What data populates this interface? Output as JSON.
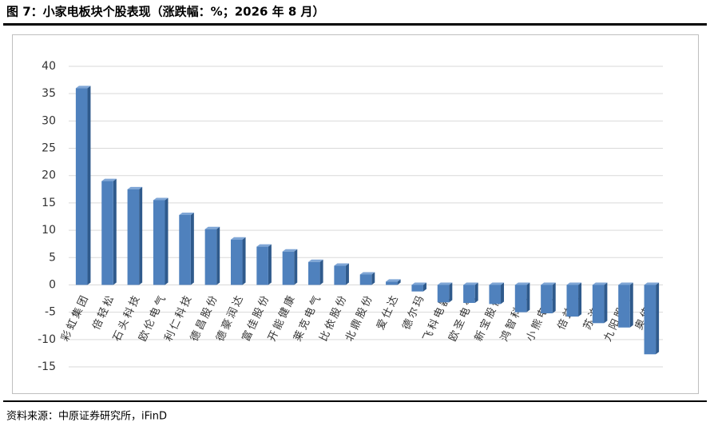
{
  "chart_data": {
    "type": "bar",
    "title": "图 7：小家电板块个股表现（涨跌幅：%；2026 年 8 月）",
    "source": "资料来源：中原证券研究所，iFinD",
    "categories": [
      "彩虹集团",
      "倍轻松",
      "石头科技",
      "欧伦电气",
      "利仁科技",
      "德昌股份",
      "德豪润达",
      "富佳股份",
      "开能健康",
      "莱克电气",
      "比依股份",
      "北鼎股份",
      "爱仕达",
      "德尔玛",
      "飞科电器",
      "欧圣电气",
      "新宝股份",
      "鸿智科技",
      "小熊电器",
      "倍益康",
      "苏泊尔",
      "九阳股份",
      "奥佳华"
    ],
    "values": [
      36,
      19,
      17.5,
      15.5,
      12.8,
      10.2,
      8.3,
      7,
      6.1,
      4.2,
      3.5,
      1.9,
      0.6,
      -1.2,
      -3.2,
      -3.3,
      -3.5,
      -5,
      -5.2,
      -5.8,
      -7,
      -7.8,
      -12.7
    ],
    "color": "#4f81bd",
    "ylim": [
      -15,
      40
    ],
    "yticks": [
      -15,
      -10,
      -5,
      0,
      5,
      10,
      15,
      20,
      25,
      30,
      35,
      40
    ],
    "grid": true
  }
}
